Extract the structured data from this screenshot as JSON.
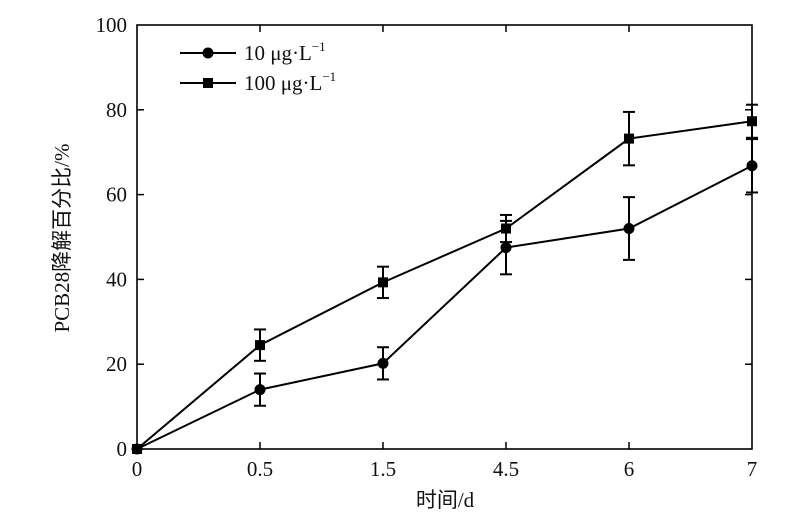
{
  "chart_data": {
    "type": "line",
    "xlabel": "时间/d",
    "ylabel": "PCB28降解百分比/%",
    "categories": [
      "0",
      "0.5",
      "1.5",
      "4.5",
      "6",
      "7"
    ],
    "ylim": [
      0,
      100
    ],
    "yticks": [
      "0",
      "20",
      "40",
      "60",
      "80",
      "100"
    ],
    "grid": false,
    "legend_position": "top-left",
    "series": [
      {
        "name": "10 μg·L",
        "name_sup": "−1",
        "marker": "circle",
        "values": [
          0,
          14,
          20.2,
          47.5,
          52,
          66.8
        ],
        "errors": [
          0,
          3.8,
          3.8,
          6.3,
          7.4,
          6.3
        ]
      },
      {
        "name": "100 μg·L",
        "name_sup": "−1",
        "marker": "square",
        "values": [
          0,
          24.5,
          39.3,
          52,
          73.2,
          77.3
        ],
        "errors": [
          0,
          3.7,
          3.7,
          3.2,
          6.3,
          3.9
        ]
      }
    ],
    "colors": {
      "line": "#000000",
      "axis": "#000000"
    }
  }
}
